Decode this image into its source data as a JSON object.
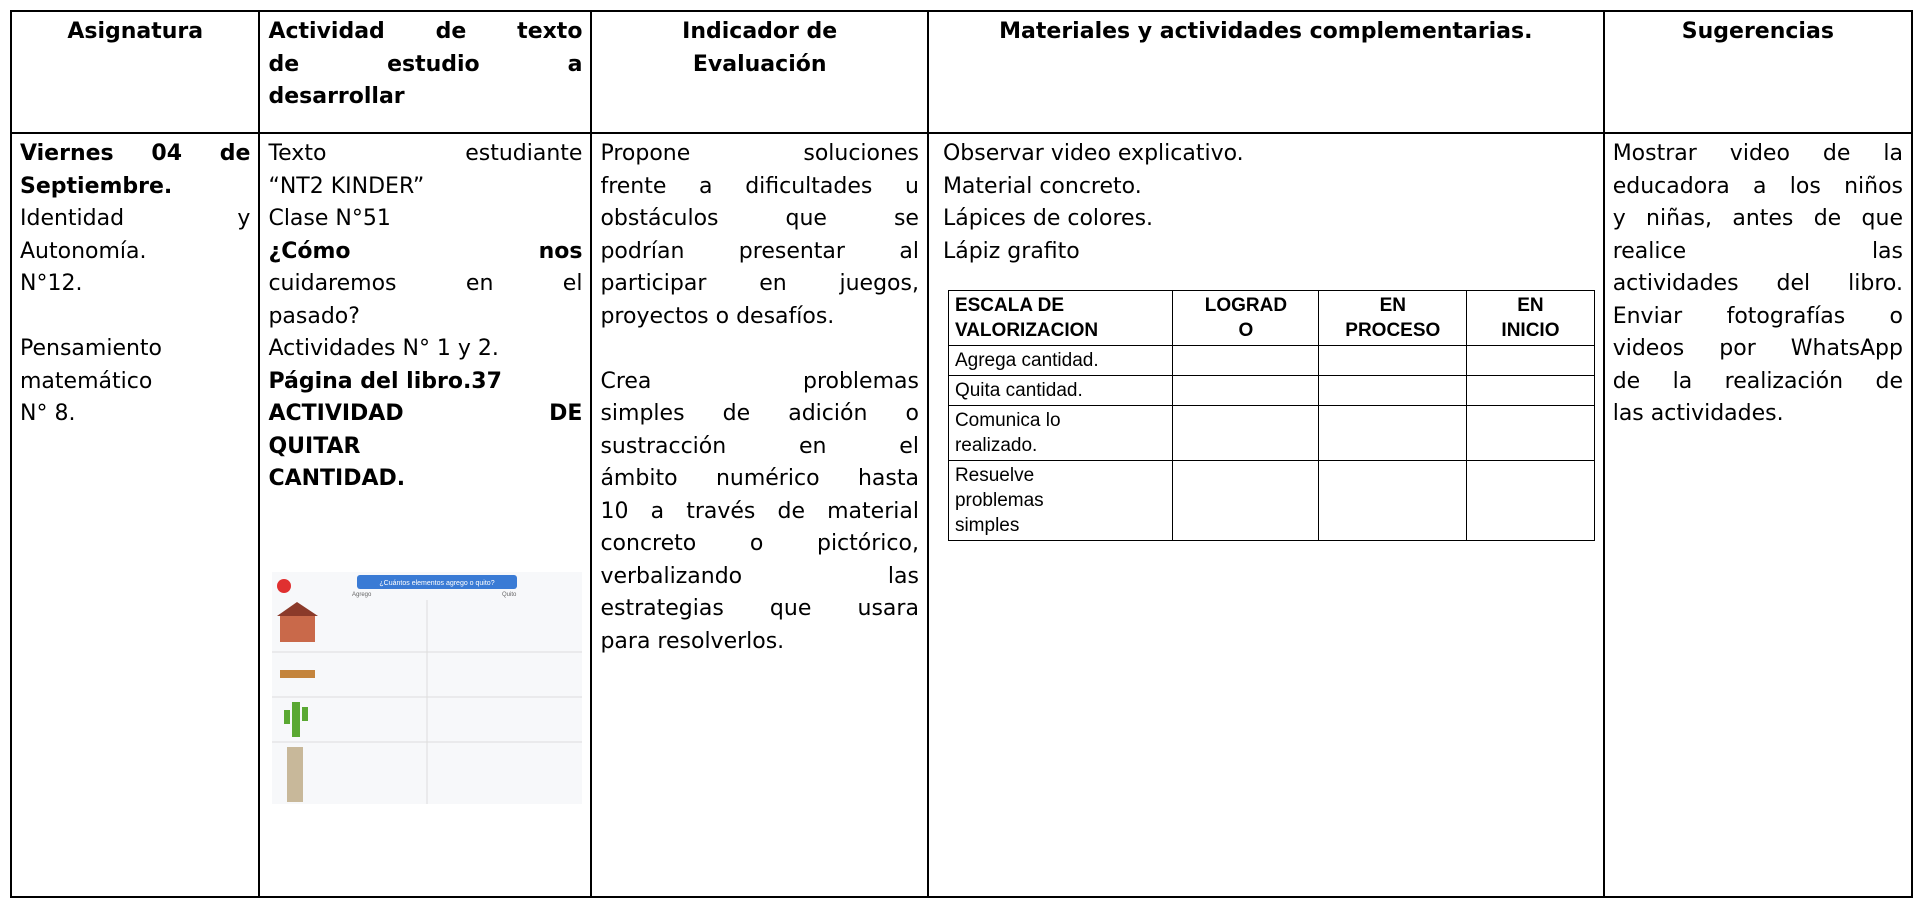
{
  "table": {
    "headers": [
      [
        "Asignatura"
      ],
      [
        "Actividad de texto",
        "de estudio a",
        "desarrollar"
      ],
      [
        "Indicador de",
        "Evaluación"
      ],
      [
        "Materiales y actividades complementarias."
      ],
      [
        "Sugerencias"
      ]
    ],
    "asignatura": [
      [
        "Viernes 04 de",
        "Septiembre.",
        "Identidad y",
        "Autonomía.",
        "N°12."
      ],
      [
        "Pensamiento",
        "matemático",
        "N° 8."
      ]
    ],
    "actividad": [
      "Texto estudiante",
      "“NT2 KINDER”",
      "Clase N°51",
      "¿Cómo nos",
      "cuidaremos en el",
      "pasado?",
      "Actividades N° 1 y 2.",
      "Página del libro.37",
      "ACTIVIDAD DE",
      "QUITAR",
      "CANTIDAD."
    ],
    "worksheet": {
      "title": "¿Cuántos elementos agrego o quito?",
      "left": "Agrego",
      "right": "Quito"
    },
    "indicador": [
      [
        "Propone soluciones",
        "frente a dificultades u",
        "obstáculos que se",
        "podrían presentar al",
        "participar en juegos,",
        "proyectos o desafíos."
      ],
      [
        "Crea problemas",
        "simples de adición o",
        "sustracción en el",
        "ámbito numérico hasta",
        "10 a través de material",
        "concreto o pictórico,",
        "verbalizando las",
        "estrategias que usara",
        "para resolverlos."
      ]
    ],
    "materiales": [
      "Observar video explicativo.",
      "Material concreto.",
      "Lápices de colores.",
      "Lápiz grafito"
    ],
    "escala": {
      "headers": [
        [
          "ESCALA DE",
          "VALORIZACION"
        ],
        [
          "LOGRAD",
          "O"
        ],
        [
          "EN",
          "PROCESO"
        ],
        [
          "EN",
          "INICIO"
        ]
      ],
      "rows": [
        [
          "Agrega cantidad."
        ],
        [
          "Quita cantidad."
        ],
        [
          "Comunica lo",
          "realizado."
        ],
        [
          "Resuelve",
          "problemas",
          "simples"
        ]
      ]
    },
    "sugerencias": [
      "Mostrar video de la",
      "educadora a los niños",
      "y niñas, antes de que",
      "realice las",
      "actividades del libro.",
      "Enviar fotografías o",
      "videos por WhatsApp",
      "de la realización de",
      "las actividades."
    ]
  }
}
